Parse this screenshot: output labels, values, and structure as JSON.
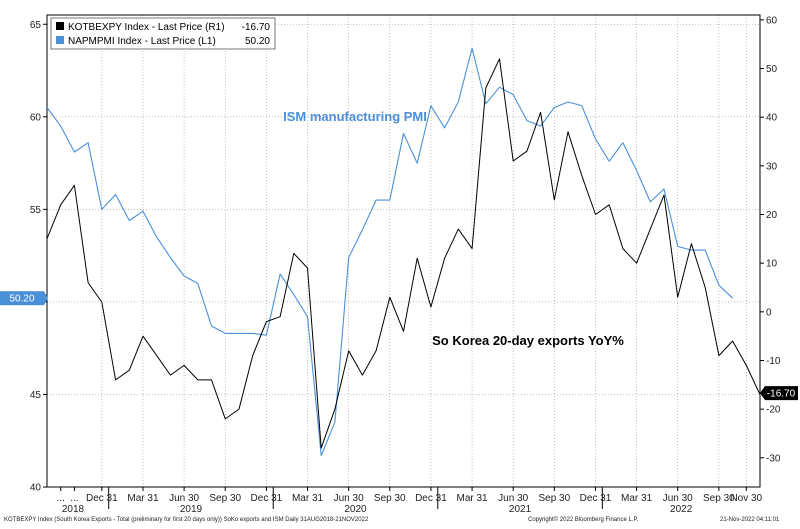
{
  "chart_data": {
    "type": "line",
    "legend": {
      "placement": "top-left",
      "entries": [
        {
          "series": "kotbexpy",
          "text": "KOTBEXPY Index - Last Price (R1)",
          "value": "-16.70",
          "color": "#000000"
        },
        {
          "series": "napmpmi",
          "text": "NAPMPMI Index - Last Price (L1)",
          "value": "50.20",
          "color": "#4a90d9"
        }
      ]
    },
    "annotations": {
      "ism": "ISM manufacturing PMI",
      "exports": "So Korea 20-day exports YoY%"
    },
    "value_tags": {
      "left": "50.20",
      "right": "-16.70"
    },
    "left_axis": {
      "min": 40,
      "max": 65.5,
      "ticks": [
        40,
        45,
        50,
        55,
        60,
        65
      ],
      "labels": [
        "40",
        "45",
        "",
        "55",
        "60",
        "65"
      ]
    },
    "right_axis": {
      "min": -36,
      "max": 61,
      "ticks": [
        -30,
        -20,
        -10,
        0,
        10,
        20,
        30,
        40,
        50,
        60
      ],
      "labels": [
        "-30",
        "-20",
        "-10",
        "0",
        "10",
        "20",
        "30",
        "40",
        "50",
        "60"
      ]
    },
    "x_tick_labels": [
      "...",
      "...",
      "Dec 31",
      "Mar 31",
      "Jun 30",
      "Sep 30",
      "Dec 31",
      "Mar 31",
      "Jun 30",
      "Sep 30",
      "Dec 31",
      "Mar 31",
      "Jun 30",
      "Sep 30",
      "Dec 31",
      "Mar 31",
      "Jun 30",
      "Sep 30",
      "Nov 30"
    ],
    "year_labels": [
      "2018",
      "2019",
      "2020",
      "2021",
      "2022"
    ],
    "x_start": "2018-08",
    "x_end": "2022-11",
    "series": [
      {
        "id": "napmpmi",
        "axis": "left",
        "color": "#4a90d9",
        "values": [
          60.5,
          59.5,
          58.1,
          58.6,
          55.0,
          55.8,
          54.4,
          54.9,
          53.5,
          52.4,
          51.4,
          51.0,
          48.7,
          48.3,
          48.3,
          48.3,
          48.2,
          51.5,
          50.4,
          49.2,
          41.7,
          43.5,
          52.4,
          53.9,
          55.5,
          55.5,
          59.1,
          57.5,
          60.6,
          59.4,
          60.8,
          63.7,
          60.7,
          61.6,
          61.2,
          59.8,
          59.5,
          60.5,
          60.8,
          60.6,
          58.8,
          57.6,
          58.6,
          57.1,
          55.4,
          56.1,
          53.0,
          52.8,
          52.8,
          50.9,
          50.2
        ],
        "missing_last": 1
      },
      {
        "id": "kotbexpy",
        "axis": "right",
        "color": "#000000",
        "values": [
          15,
          22,
          26,
          6,
          2,
          -14,
          -12,
          -5,
          -9,
          -13,
          -11,
          -14,
          -14,
          -22,
          -20,
          -9,
          -2,
          -1,
          12,
          9,
          -28,
          -20,
          -8,
          -13,
          -8,
          3,
          -4,
          11,
          1,
          11,
          17,
          13,
          46,
          52,
          31,
          33,
          41,
          23,
          37,
          28,
          20,
          22,
          13,
          10,
          17,
          24,
          3,
          14,
          5,
          -9,
          -6,
          -11,
          -17
        ]
      }
    ],
    "footer": {
      "source": "KOTBEXPY Index (South Korea Exports - Total (preliminary for first 20 days only)) SoKo exports and ISM  Daily 31AUG2018-21NOV2022",
      "copyright": "Copyright© 2022 Bloomberg Finance L.P.",
      "timestamp": "21-Nov-2022 04:11:01"
    }
  }
}
